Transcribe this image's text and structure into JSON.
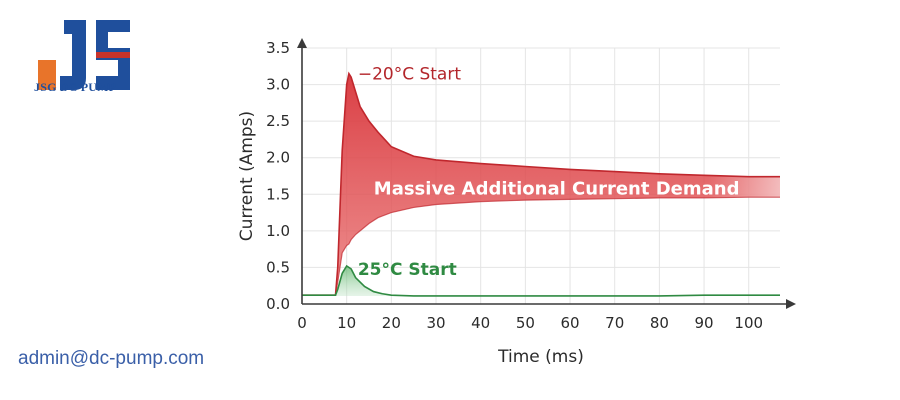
{
  "brand": {
    "logo_text": "JSG DC PUMP",
    "logo_colors": {
      "orange": "#e8742a",
      "blue": "#1f4f9c",
      "red": "#c8332b"
    }
  },
  "contact": {
    "email": "admin@dc-pump.com"
  },
  "chart_data": {
    "type": "line",
    "xlabel": "Time (ms)",
    "ylabel": "Current (Amps)",
    "xlim": [
      0,
      107
    ],
    "ylim": [
      0,
      3.5
    ],
    "xticks": [
      0,
      10,
      20,
      30,
      40,
      50,
      60,
      70,
      80,
      90,
      100
    ],
    "yticks": [
      0.0,
      0.5,
      1.0,
      1.5,
      2.0,
      2.5,
      3.0,
      3.5
    ],
    "ytick_labels": [
      "0.0",
      "0.5",
      "1.0",
      "1.5",
      "2.0",
      "2.5",
      "3.0",
      "3.5"
    ],
    "grid": true,
    "series": [
      {
        "name": "−20°C Start",
        "color": "#c0272d",
        "x": [
          0,
          7.5,
          8,
          9,
          10,
          10.5,
          11,
          12,
          13,
          15,
          17,
          20,
          25,
          30,
          40,
          50,
          60,
          70,
          80,
          90,
          100,
          107
        ],
        "upper": [
          0.12,
          0.12,
          0.5,
          2.1,
          3.0,
          3.15,
          3.1,
          2.9,
          2.7,
          2.5,
          2.35,
          2.15,
          2.02,
          1.97,
          1.92,
          1.88,
          1.84,
          1.81,
          1.78,
          1.76,
          1.74,
          1.74
        ],
        "lower": [
          0.12,
          0.12,
          0.3,
          0.7,
          0.8,
          0.82,
          0.88,
          0.95,
          1.0,
          1.1,
          1.18,
          1.25,
          1.32,
          1.36,
          1.4,
          1.42,
          1.43,
          1.44,
          1.45,
          1.45,
          1.46,
          1.46
        ]
      },
      {
        "name": "25°C Start",
        "color": "#2f8a42",
        "x": [
          0,
          7.5,
          8,
          9,
          10,
          11,
          12,
          14,
          16,
          18,
          20,
          25,
          30,
          40,
          50,
          60,
          70,
          80,
          90,
          100,
          107
        ],
        "values": [
          0.12,
          0.12,
          0.2,
          0.42,
          0.52,
          0.48,
          0.36,
          0.24,
          0.17,
          0.14,
          0.12,
          0.11,
          0.11,
          0.11,
          0.11,
          0.11,
          0.11,
          0.11,
          0.12,
          0.12,
          0.12
        ]
      }
    ],
    "annotations": [
      {
        "text": "−20°C Start",
        "x": 12.5,
        "y": 3.15
      },
      {
        "text": "Massive Additional Current Demand",
        "x": 57,
        "y": 1.58
      },
      {
        "text": "25°C Start",
        "x": 12.5,
        "y": 0.48
      }
    ]
  }
}
